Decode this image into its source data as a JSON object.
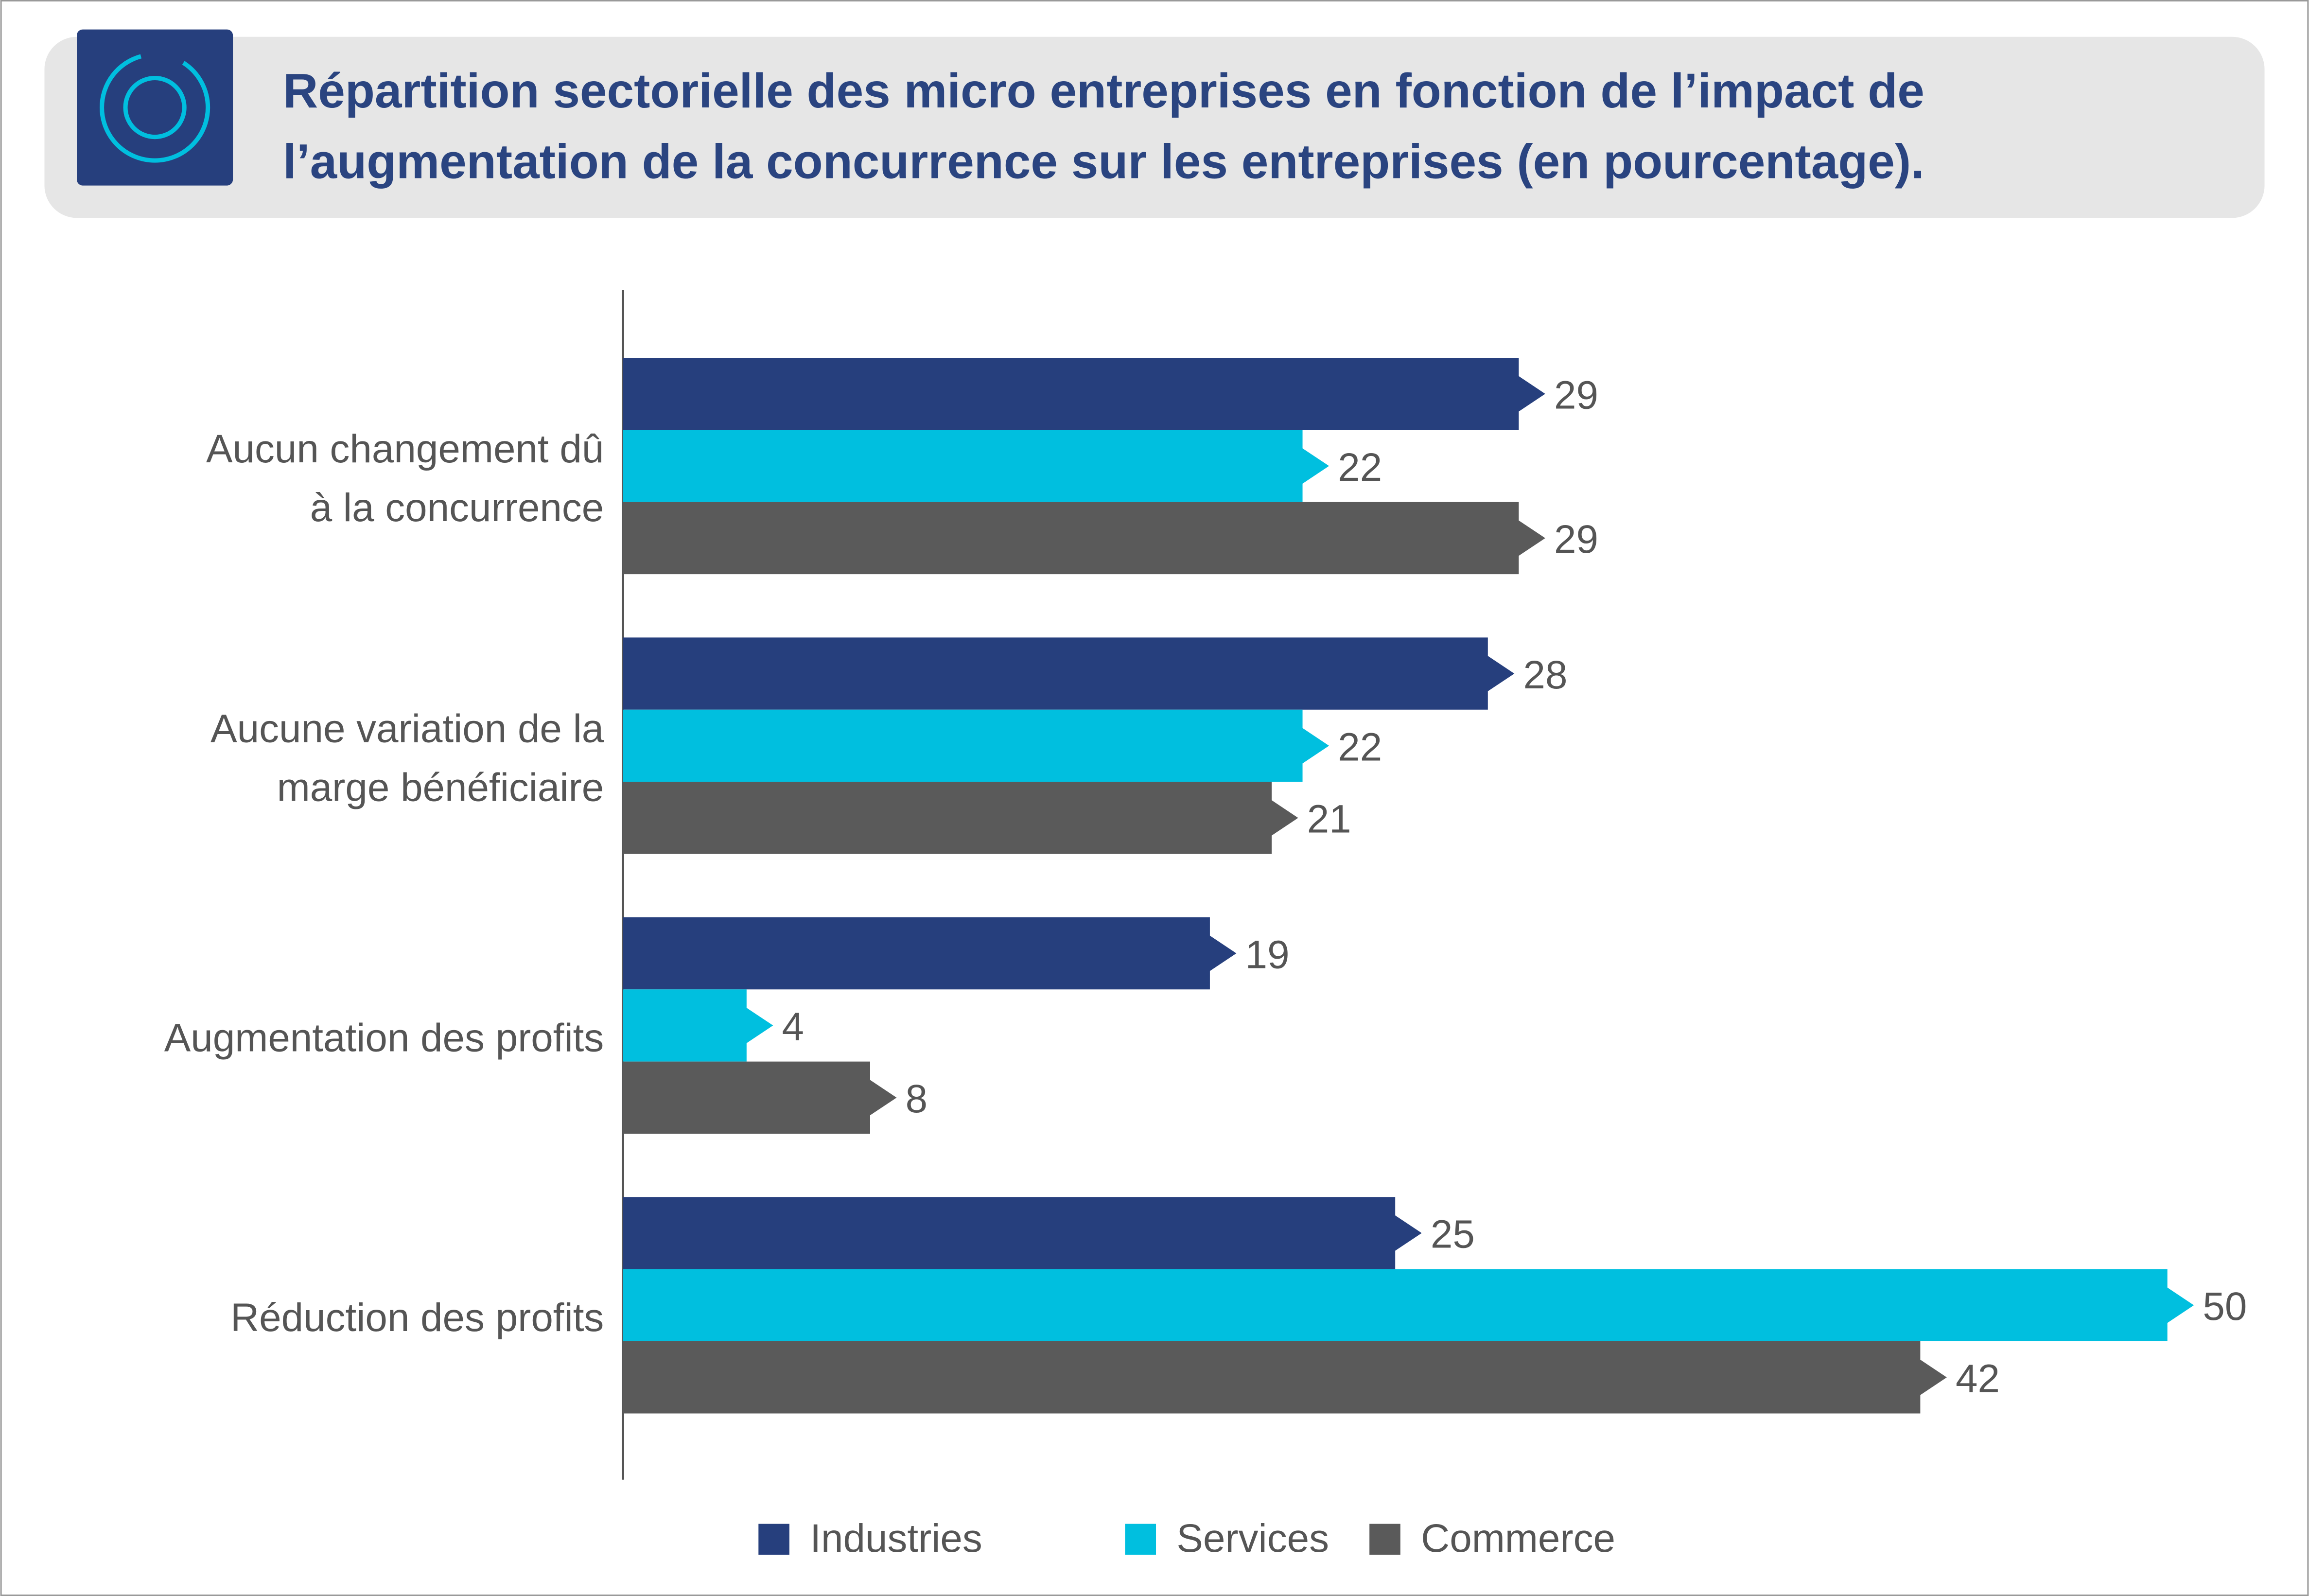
{
  "chart_data": {
    "type": "hbar",
    "title": "Répartition sectorielle des micro entreprises en fonction de l’impact de\nl’augmentation de la concurrence sur les entreprises (en pourcentage).",
    "categories": [
      "Aucun changement dû\nà la concurrence",
      "Aucune variation de la\nmarge bénéficiaire",
      "Augmentation des profits",
      "Réduction des profits"
    ],
    "series": [
      {
        "name": "Industries",
        "color": "#263f7d",
        "values": [
          29,
          28,
          19,
          25
        ]
      },
      {
        "name": "Services",
        "color": "#00bfdf",
        "values": [
          22,
          22,
          4,
          50
        ]
      },
      {
        "name": "Commerce",
        "color": "#5a5a5a",
        "values": [
          29,
          21,
          8,
          42
        ]
      }
    ]
  }
}
